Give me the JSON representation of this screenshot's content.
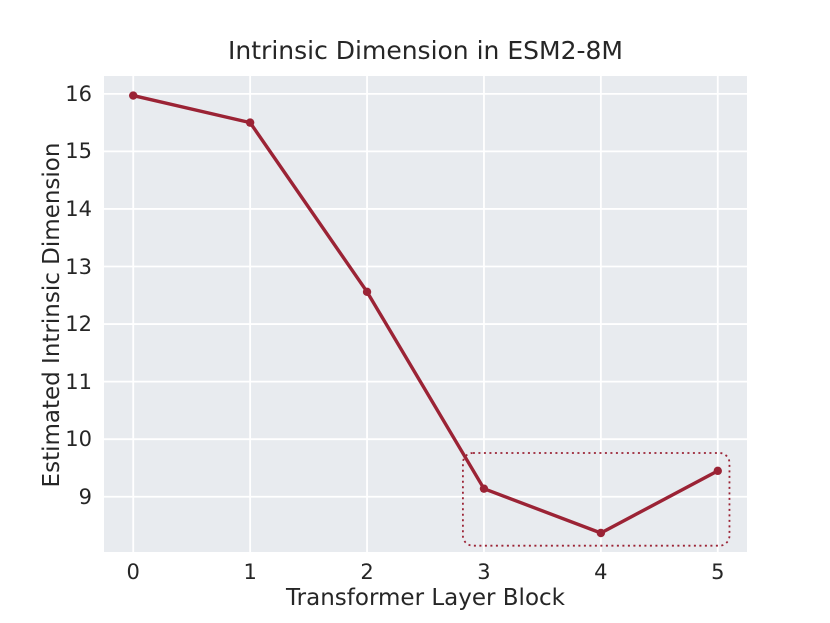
{
  "figure": {
    "background": "#ffffff",
    "plot_background": "#E8EBEF",
    "grid_color": "#ffffff",
    "text_color": "#262626"
  },
  "chart_data": {
    "type": "line",
    "title": "Intrinsic Dimension in ESM2-8M",
    "xlabel": "Transformer Layer Block",
    "ylabel": "Estimated Intrinsic Dimension",
    "x": [
      0,
      1,
      2,
      3,
      4,
      5
    ],
    "y": [
      15.97,
      15.5,
      12.56,
      9.14,
      8.37,
      9.45
    ],
    "xticks": [
      "0",
      "1",
      "2",
      "3",
      "4",
      "5"
    ],
    "yticks": [
      "9",
      "10",
      "11",
      "12",
      "13",
      "14",
      "15",
      "16"
    ],
    "xlim": [
      -0.25,
      5.25
    ],
    "ylim": [
      8.04,
      16.31
    ],
    "grid": true,
    "legend": false,
    "line_color": "#9B2335",
    "marker": "circle",
    "annotation_box": {
      "x0": 2.82,
      "x1": 5.1,
      "y0": 8.15,
      "y1": 9.76,
      "border_style": "dotted",
      "color": "#9B2335",
      "corner_radius": 10
    }
  }
}
